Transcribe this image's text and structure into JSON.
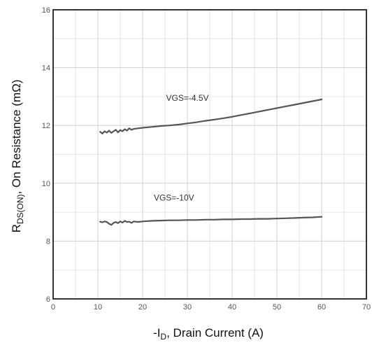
{
  "chart_data": {
    "type": "line",
    "title": "",
    "xlabel": {
      "prefix": "-I",
      "sub": "D",
      "rest": ", Drain Current (A)"
    },
    "ylabel": {
      "prefix": "R",
      "sub": "DS(ON)",
      "rest": ", On Resistance (mΩ)"
    },
    "xlim": [
      0,
      70
    ],
    "ylim": [
      6,
      16
    ],
    "x_ticks": [
      0,
      10,
      20,
      30,
      40,
      50,
      60,
      70
    ],
    "y_ticks": [
      6,
      8,
      10,
      12,
      14,
      16
    ],
    "grid": true,
    "minor_grid": true,
    "legend": "none",
    "line_color": "#555555",
    "series": [
      {
        "name": "VGS=-4.5V",
        "x": [
          10.5,
          11,
          11.5,
          12,
          12.5,
          13,
          13.5,
          14,
          14.5,
          15,
          15.5,
          16,
          16.5,
          17,
          17.5,
          18,
          19,
          20,
          22,
          24,
          26,
          28,
          30,
          32,
          34,
          36,
          38,
          40,
          42,
          44,
          46,
          48,
          50,
          52,
          54,
          56,
          58,
          60
        ],
        "y": [
          11.78,
          11.72,
          11.8,
          11.75,
          11.82,
          11.74,
          11.8,
          11.85,
          11.76,
          11.84,
          11.8,
          11.87,
          11.82,
          11.9,
          11.85,
          11.88,
          11.9,
          11.92,
          11.95,
          11.98,
          12.0,
          12.03,
          12.07,
          12.11,
          12.16,
          12.2,
          12.25,
          12.3,
          12.36,
          12.42,
          12.48,
          12.54,
          12.6,
          12.66,
          12.72,
          12.78,
          12.84,
          12.9
        ]
      },
      {
        "name": "VGS=-10V",
        "x": [
          10.5,
          11,
          11.5,
          12,
          12.5,
          13,
          13.5,
          14,
          14.5,
          15,
          15.5,
          16,
          16.5,
          17,
          17.5,
          18,
          19,
          20,
          22,
          24,
          26,
          28,
          30,
          32,
          34,
          36,
          38,
          40,
          42,
          44,
          46,
          48,
          50,
          52,
          54,
          56,
          58,
          60
        ],
        "y": [
          8.67,
          8.65,
          8.68,
          8.66,
          8.6,
          8.56,
          8.63,
          8.66,
          8.62,
          8.68,
          8.64,
          8.7,
          8.66,
          8.67,
          8.63,
          8.68,
          8.66,
          8.68,
          8.7,
          8.71,
          8.72,
          8.72,
          8.73,
          8.73,
          8.74,
          8.74,
          8.75,
          8.75,
          8.76,
          8.76,
          8.77,
          8.77,
          8.78,
          8.79,
          8.8,
          8.81,
          8.82,
          8.84
        ]
      }
    ],
    "annotations": [
      {
        "text": "VGS=-4.5V",
        "x": 30,
        "y": 12.85
      },
      {
        "text": "VGS=-10V",
        "x": 27,
        "y": 9.4
      }
    ]
  }
}
